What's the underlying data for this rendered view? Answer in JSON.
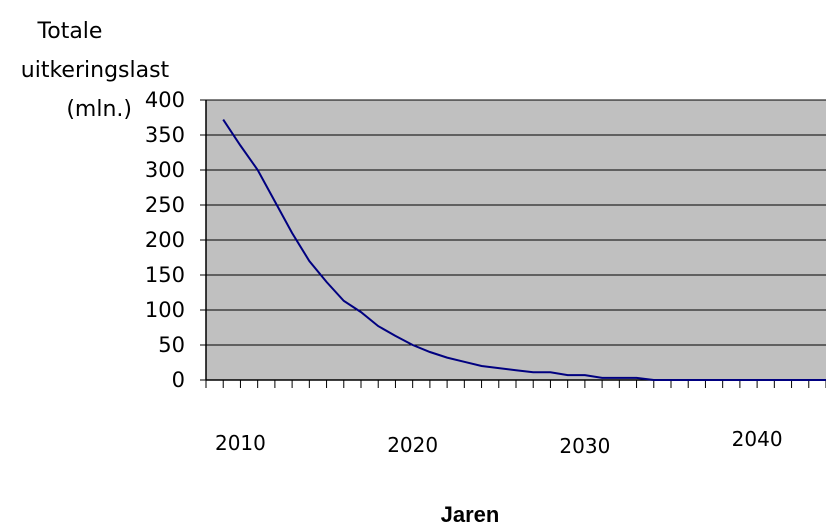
{
  "chart_data": {
    "type": "line",
    "title": "",
    "ylabel_lines": [
      "Totale",
      "uitkeringslast",
      "(mln.)"
    ],
    "xlabel": "Jaren",
    "ylim": [
      0,
      400
    ],
    "yticks": [
      "0",
      "50",
      "100",
      "150",
      "200",
      "250",
      "300",
      "350",
      "400"
    ],
    "xticks": [
      {
        "year": 2010,
        "label": "2010"
      },
      {
        "year": 2020,
        "label": "2020"
      },
      {
        "year": 2030,
        "label": "2030"
      },
      {
        "year": 2040,
        "label": "2040"
      }
    ],
    "grid": true,
    "x_start": 2008,
    "x_end": 2044,
    "background_color": "#c0c0c0",
    "line_color": "#000080",
    "series": [
      {
        "x": [
          2009,
          2010,
          2011,
          2012,
          2013,
          2014,
          2015,
          2016,
          2017,
          2018,
          2019,
          2020,
          2021,
          2022,
          2023,
          2024,
          2025,
          2026,
          2027,
          2028,
          2029,
          2030,
          2031,
          2032,
          2033,
          2034,
          2035,
          2036,
          2037,
          2038,
          2039,
          2040,
          2041,
          2042,
          2043,
          2044
        ],
        "values": [
          372,
          335,
          300,
          255,
          210,
          170,
          140,
          113,
          97,
          77,
          63,
          50,
          40,
          32,
          26,
          20,
          17,
          14,
          11,
          11,
          7,
          7,
          3,
          3,
          3,
          0,
          0,
          0,
          0,
          0,
          0,
          0,
          0,
          0,
          0,
          0
        ]
      }
    ]
  }
}
